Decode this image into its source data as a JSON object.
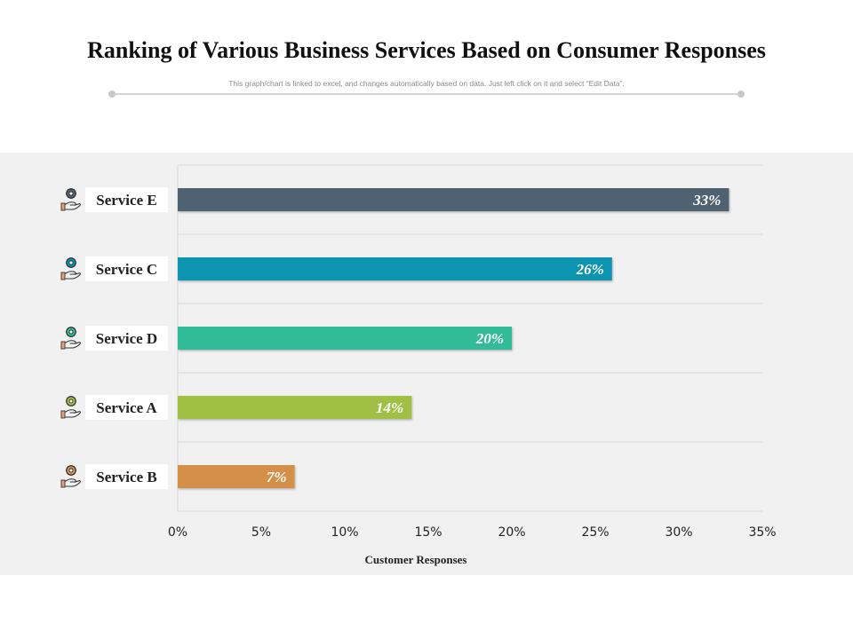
{
  "title": "Ranking of Various Business Services Based on Consumer Responses",
  "subtitle": "This graph/chart is linked to excel, and changes automatically based on data. Just left click on it and select “Edit Data”.",
  "colors": {
    "background_panel": "#f1f1f1",
    "grid": "#d8d8d8",
    "text": "#222222"
  },
  "chart_data": {
    "type": "bar",
    "orientation": "horizontal",
    "categories": [
      "Service E",
      "Service C",
      "Service D",
      "Service A",
      "Service B"
    ],
    "values": [
      33,
      26,
      20,
      14,
      7
    ],
    "data_labels": [
      "33%",
      "26%",
      "20%",
      "14%",
      "7%"
    ],
    "bar_colors": [
      "#4f6272",
      "#0b94b1",
      "#33bb97",
      "#9fc042",
      "#d48f49"
    ],
    "icon_colors": [
      "#4f6272",
      "#0b94b1",
      "#33bb97",
      "#9fc042",
      "#d48f49"
    ],
    "icon": "gear-on-hand-icon",
    "xlim": [
      0,
      35
    ],
    "xticks": [
      0,
      5,
      10,
      15,
      20,
      25,
      30,
      35
    ],
    "xtick_labels": [
      "0%",
      "5%",
      "10%",
      "15%",
      "20%",
      "25%",
      "30%",
      "35%"
    ],
    "xlabel": "Customer Responses",
    "ylabel": "",
    "grid": true,
    "legend": "none"
  }
}
